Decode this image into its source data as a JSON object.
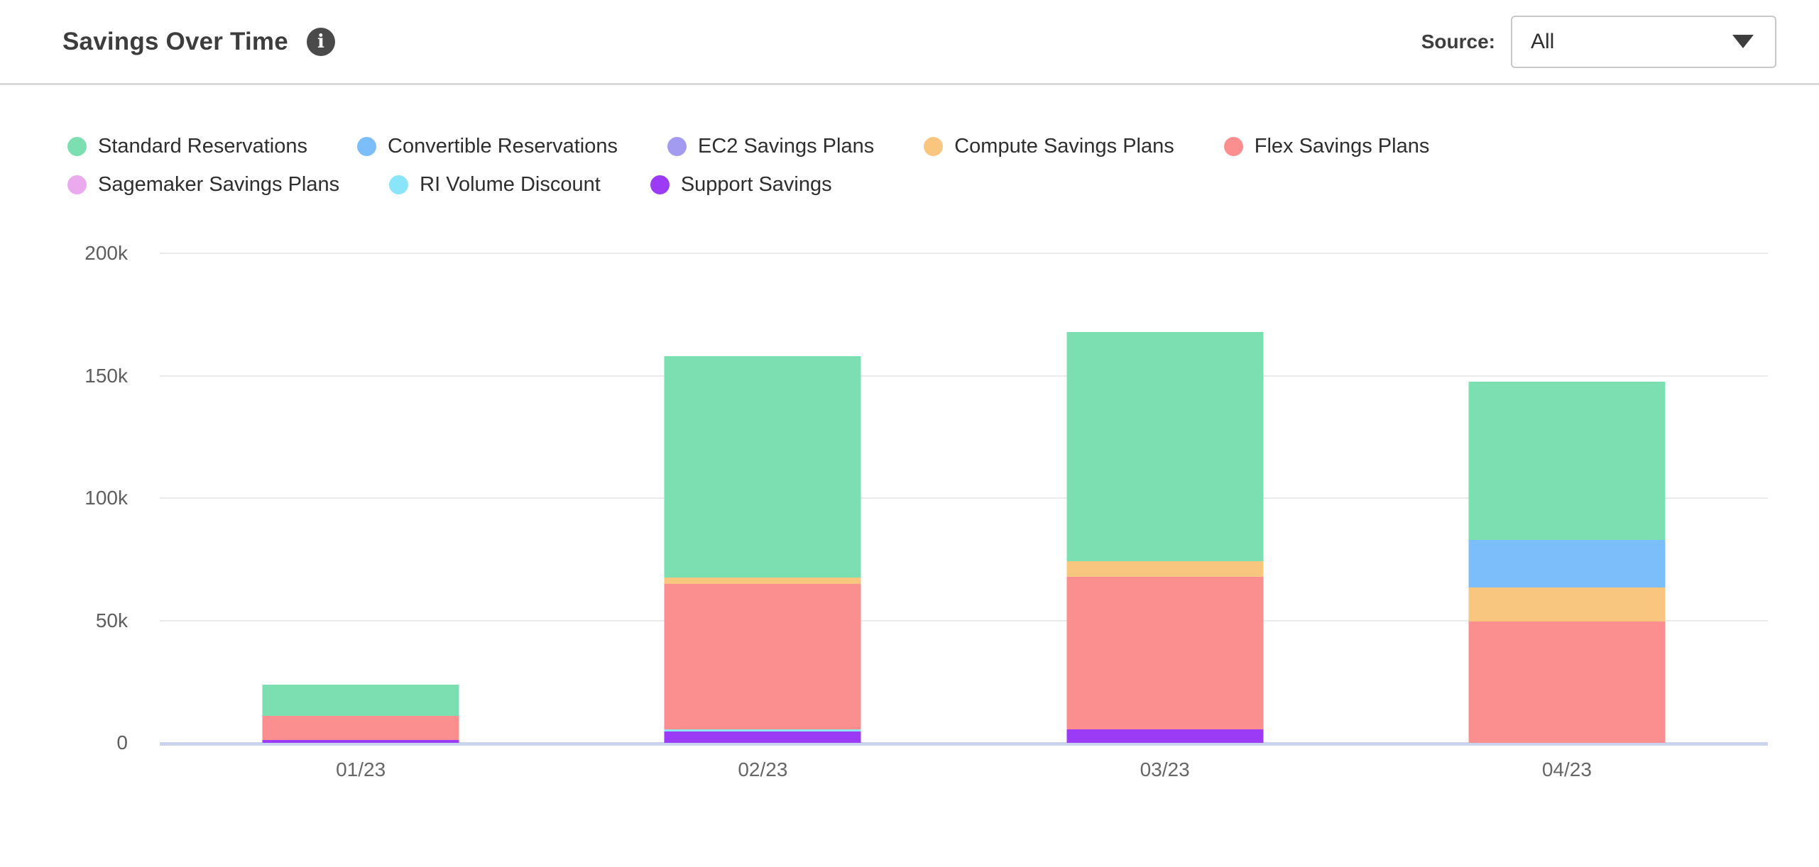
{
  "header": {
    "title": "Savings Over Time",
    "info_glyph": "i",
    "source_label": "Source:",
    "source_value": "All"
  },
  "colors": {
    "axis_line": "#ccd3ec",
    "gridline": "#eaeaea",
    "title_text": "#3d3d3d",
    "tick_text": "#5e5e5e"
  },
  "chart_data": {
    "type": "bar",
    "stacked": true,
    "title": "Savings Over Time",
    "categories": [
      "01/23",
      "02/23",
      "03/23",
      "04/23"
    ],
    "series": [
      {
        "name": "Standard Reservations",
        "color": "#7cdfb2",
        "values": [
          12800,
          90500,
          93600,
          64500
        ]
      },
      {
        "name": "Convertible Reservations",
        "color": "#7cbef9",
        "values": [
          0,
          0,
          0,
          19400
        ]
      },
      {
        "name": "EC2 Savings Plans",
        "color": "#a29bf0",
        "values": [
          0,
          0,
          0,
          0
        ]
      },
      {
        "name": "Compute Savings Plans",
        "color": "#f8c67e",
        "values": [
          0,
          2600,
          6400,
          13900
        ]
      },
      {
        "name": "Flex Savings Plans",
        "color": "#fb8f8f",
        "values": [
          9800,
          59500,
          62400,
          49700
        ]
      },
      {
        "name": "Sagemaker Savings Plans",
        "color": "#eba9ee",
        "values": [
          0,
          0,
          0,
          0
        ]
      },
      {
        "name": "RI Volume Discount",
        "color": "#8be5f8",
        "values": [
          0,
          1000,
          0,
          0
        ]
      },
      {
        "name": "Support Savings",
        "color": "#9c3bf5",
        "values": [
          1200,
          4500,
          5400,
          0
        ]
      }
    ],
    "stack_order_bottom_to_top": [
      "Support Savings",
      "RI Volume Discount",
      "Sagemaker Savings Plans",
      "Flex Savings Plans",
      "Compute Savings Plans",
      "EC2 Savings Plans",
      "Convertible Reservations",
      "Standard Reservations"
    ],
    "ylim": [
      0,
      200000
    ],
    "yticks": [
      {
        "value": 0,
        "label": "0"
      },
      {
        "value": 50000,
        "label": "50k"
      },
      {
        "value": 100000,
        "label": "100k"
      },
      {
        "value": 150000,
        "label": "150k"
      },
      {
        "value": 200000,
        "label": "200k"
      }
    ],
    "grid": true,
    "legend_position": "top"
  }
}
